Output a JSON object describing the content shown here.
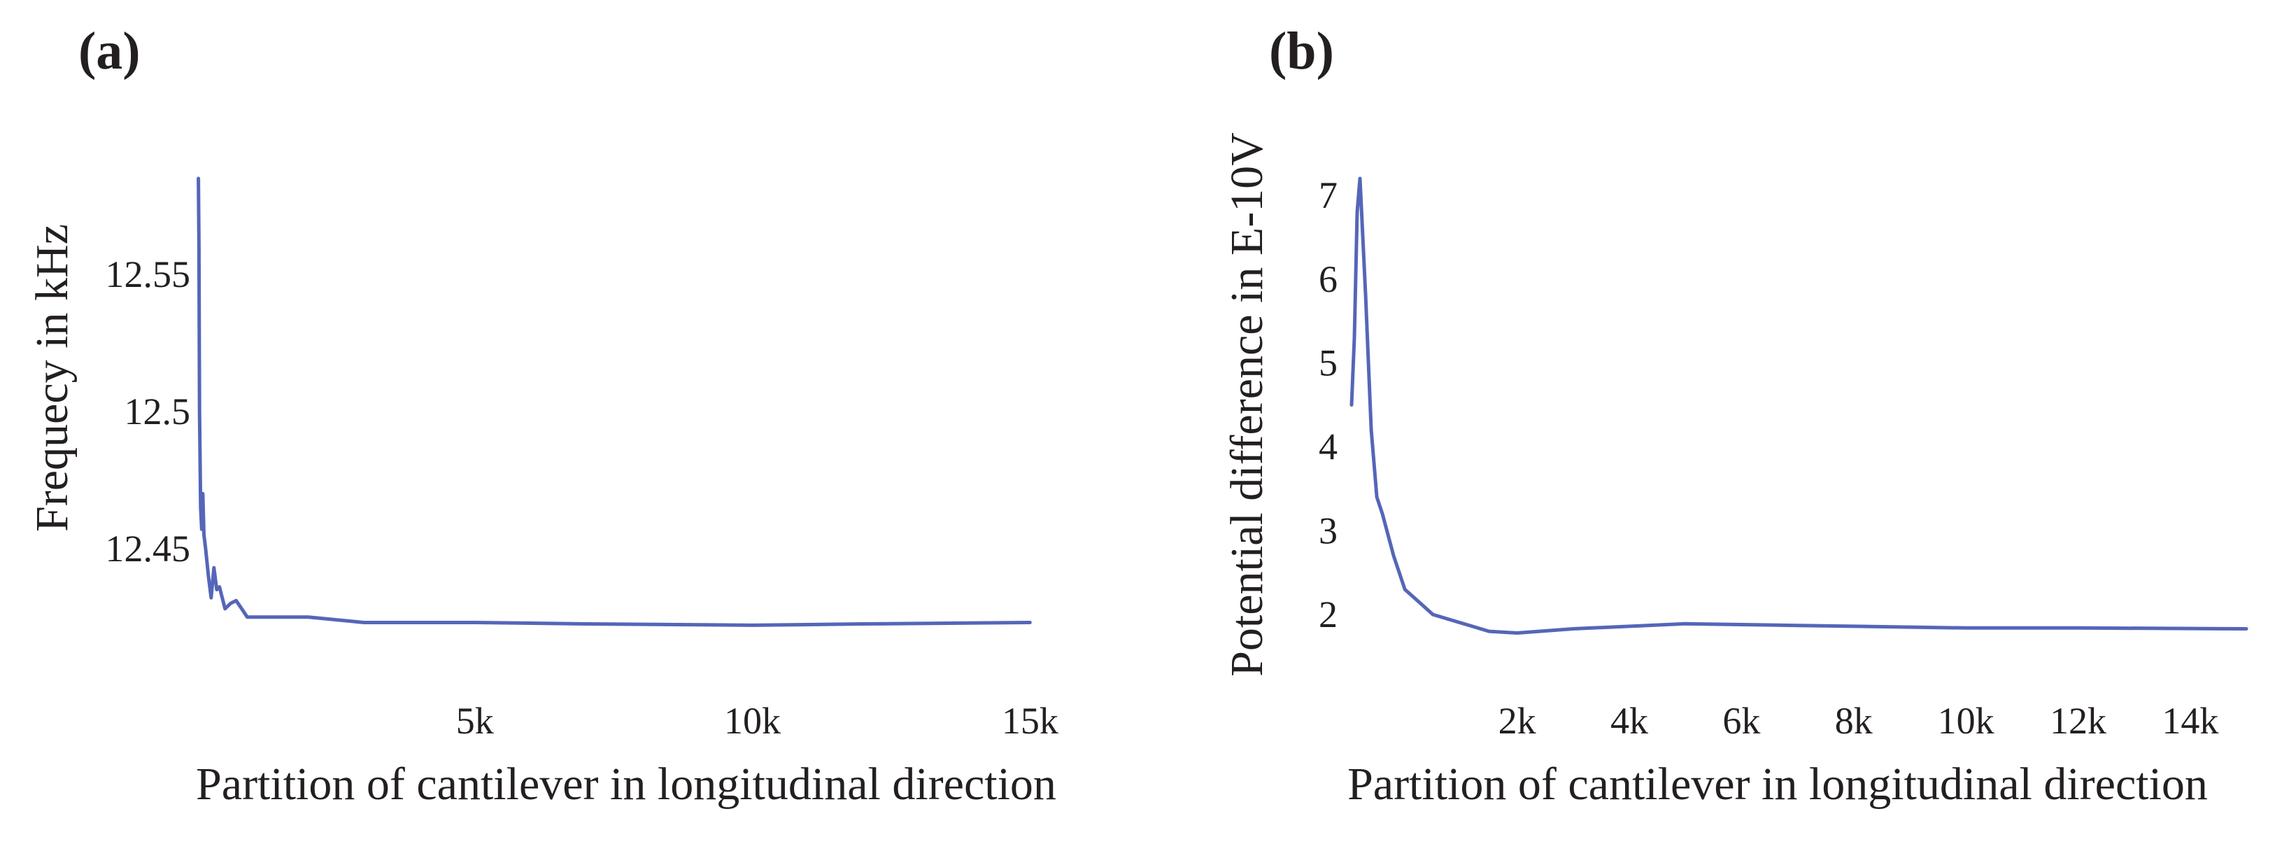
{
  "chart_data": [
    {
      "panel_label": "(a)",
      "type": "line",
      "title": "",
      "xlabel": "Partition of cantilever in longitudinal direction",
      "ylabel": "Frequecy in kHz",
      "xlim": [
        0,
        15500
      ],
      "ylim": [
        12.405,
        12.585
      ],
      "x_ticks": [
        5000,
        10000,
        15000
      ],
      "x_tick_labels": [
        "5k",
        "10k",
        "15k"
      ],
      "y_ticks": [
        12.45,
        12.5,
        12.55
      ],
      "y_tick_labels": [
        "12.45",
        "12.5",
        "12.55"
      ],
      "color": "#5566b8",
      "series": [
        {
          "name": "Frequency",
          "x": [
            20,
            30,
            40,
            60,
            80,
            100,
            120,
            150,
            200,
            250,
            300,
            350,
            400,
            500,
            600,
            700,
            800,
            900,
            1000,
            2000,
            3000,
            5000,
            7000,
            10000,
            12000,
            15000
          ],
          "y": [
            12.585,
            12.56,
            12.5,
            12.465,
            12.457,
            12.47,
            12.455,
            12.45,
            12.44,
            12.432,
            12.443,
            12.435,
            12.436,
            12.428,
            12.43,
            12.431,
            12.428,
            12.425,
            12.425,
            12.425,
            12.423,
            12.423,
            12.4225,
            12.422,
            12.4225,
            12.423
          ]
        }
      ]
    },
    {
      "panel_label": "(b)",
      "type": "line",
      "title": "",
      "xlabel": "Partition of cantilever in longitudinal direction",
      "ylabel": "Potential difference in E-10V",
      "xlim": [
        -1000,
        15000
      ],
      "ylim": [
        1.4,
        7.2
      ],
      "x_ticks": [
        2000,
        4000,
        6000,
        8000,
        10000,
        12000,
        14000
      ],
      "x_tick_labels": [
        "2k",
        "4k",
        "6k",
        "8k",
        "10k",
        "12k",
        "14k"
      ],
      "y_ticks": [
        2,
        3,
        4,
        5,
        6,
        7
      ],
      "y_tick_labels": [
        "2",
        "3",
        "4",
        "5",
        "6",
        "7"
      ],
      "color": "#5566b8",
      "series": [
        {
          "name": "Potential difference",
          "x": [
            -950,
            -900,
            -850,
            -800,
            -700,
            -600,
            -500,
            -400,
            -200,
            0,
            500,
            1000,
            1500,
            2000,
            3000,
            5000,
            7000,
            10000,
            12000,
            15000
          ],
          "y": [
            4.5,
            5.3,
            6.8,
            7.2,
            5.8,
            4.2,
            3.4,
            3.2,
            2.7,
            2.3,
            2.0,
            1.9,
            1.8,
            1.78,
            1.83,
            1.89,
            1.87,
            1.84,
            1.84,
            1.83
          ]
        }
      ]
    }
  ]
}
